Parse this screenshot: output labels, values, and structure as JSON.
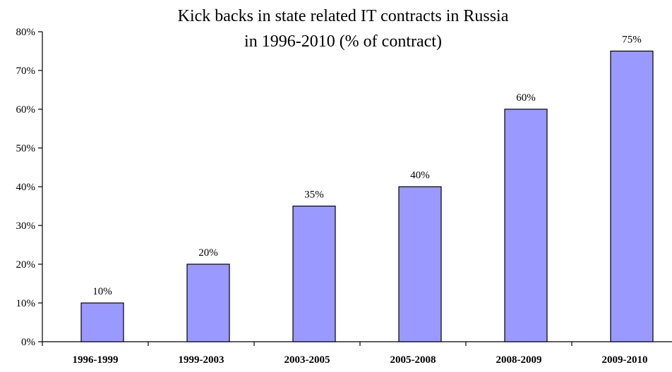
{
  "chart_data": {
    "type": "bar",
    "title_lines": [
      "Kick backs in state related IT contracts in Russia",
      "in 1996-2010 (% of contract)"
    ],
    "categories": [
      "1996-1999",
      "1999-2003",
      "2003-2005",
      "2005-2008",
      "2008-2009",
      "2009-2010"
    ],
    "values": [
      10,
      20,
      35,
      40,
      60,
      75
    ],
    "data_labels": [
      "10%",
      "20%",
      "35%",
      "40%",
      "60%",
      "75%"
    ],
    "xlabel": "",
    "ylabel": "",
    "ylim": [
      0,
      80
    ],
    "yticks": [
      0,
      10,
      20,
      30,
      40,
      50,
      60,
      70,
      80
    ],
    "ytick_labels": [
      "0%",
      "10%",
      "20%",
      "30%",
      "40%",
      "50%",
      "60%",
      "70%",
      "80%"
    ],
    "bar_color": "#9999ff",
    "bar_edge_color": "#000000",
    "grid": false,
    "legend": "none"
  }
}
